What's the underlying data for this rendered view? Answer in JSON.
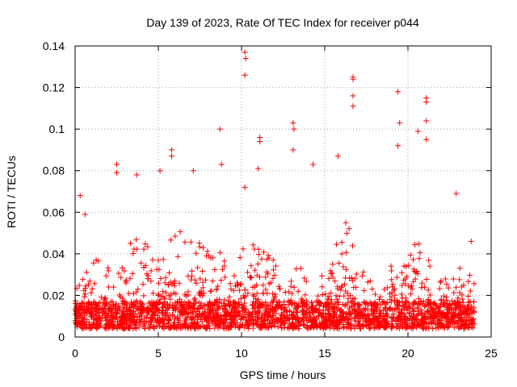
{
  "chart_data": {
    "type": "scatter",
    "title": "Day 139 of 2023, Rate Of TEC Index for receiver p044",
    "xlabel": "GPS time / hours",
    "ylabel": "ROTI / TECUs",
    "xlim": [
      0,
      25
    ],
    "ylim": [
      0,
      0.14
    ],
    "x_ticks": [
      0,
      5,
      10,
      15,
      20,
      25
    ],
    "x_tick_labels": [
      "0",
      "5",
      "10",
      "15",
      "20",
      "25"
    ],
    "y_ticks": [
      0,
      0.02,
      0.04,
      0.06,
      0.08,
      0.1,
      0.12,
      0.14
    ],
    "y_tick_labels": [
      "0",
      "0.02",
      "0.04",
      "0.06",
      "0.08",
      "0.1",
      "0.12",
      "0.14"
    ],
    "grid": true,
    "marker": "+",
    "marker_color": "#ff0000",
    "data_time_range_hours": [
      0,
      24
    ],
    "notable_points": [
      {
        "x": 0.3,
        "y": 0.068
      },
      {
        "x": 0.6,
        "y": 0.059
      },
      {
        "x": 2.5,
        "y": 0.083
      },
      {
        "x": 2.5,
        "y": 0.079
      },
      {
        "x": 3.7,
        "y": 0.078
      },
      {
        "x": 5.1,
        "y": 0.08
      },
      {
        "x": 5.8,
        "y": 0.09
      },
      {
        "x": 5.8,
        "y": 0.087
      },
      {
        "x": 7.1,
        "y": 0.08
      },
      {
        "x": 8.7,
        "y": 0.1
      },
      {
        "x": 8.8,
        "y": 0.083
      },
      {
        "x": 10.2,
        "y": 0.137
      },
      {
        "x": 10.25,
        "y": 0.134
      },
      {
        "x": 10.2,
        "y": 0.126
      },
      {
        "x": 10.2,
        "y": 0.072
      },
      {
        "x": 11.1,
        "y": 0.096
      },
      {
        "x": 11.1,
        "y": 0.094
      },
      {
        "x": 11.0,
        "y": 0.081
      },
      {
        "x": 13.1,
        "y": 0.103
      },
      {
        "x": 13.15,
        "y": 0.1
      },
      {
        "x": 13.1,
        "y": 0.09
      },
      {
        "x": 14.3,
        "y": 0.083
      },
      {
        "x": 15.8,
        "y": 0.087
      },
      {
        "x": 16.7,
        "y": 0.125
      },
      {
        "x": 16.7,
        "y": 0.124
      },
      {
        "x": 16.7,
        "y": 0.116
      },
      {
        "x": 16.7,
        "y": 0.111
      },
      {
        "x": 19.4,
        "y": 0.118
      },
      {
        "x": 19.5,
        "y": 0.103
      },
      {
        "x": 19.4,
        "y": 0.092
      },
      {
        "x": 20.6,
        "y": 0.099
      },
      {
        "x": 21.1,
        "y": 0.115
      },
      {
        "x": 21.1,
        "y": 0.113
      },
      {
        "x": 21.1,
        "y": 0.104
      },
      {
        "x": 21.1,
        "y": 0.095
      },
      {
        "x": 22.9,
        "y": 0.069
      },
      {
        "x": 23.8,
        "y": 0.046
      }
    ],
    "typical_envelope": [
      {
        "x": 0,
        "y": 0.03
      },
      {
        "x": 1,
        "y": 0.04
      },
      {
        "x": 2,
        "y": 0.035
      },
      {
        "x": 3,
        "y": 0.038
      },
      {
        "x": 3.7,
        "y": 0.055
      },
      {
        "x": 4.5,
        "y": 0.045
      },
      {
        "x": 5.5,
        "y": 0.05
      },
      {
        "x": 6.5,
        "y": 0.055
      },
      {
        "x": 7.5,
        "y": 0.045
      },
      {
        "x": 8.5,
        "y": 0.045
      },
      {
        "x": 9.5,
        "y": 0.04
      },
      {
        "x": 10.5,
        "y": 0.05
      },
      {
        "x": 11.5,
        "y": 0.045
      },
      {
        "x": 12.5,
        "y": 0.03
      },
      {
        "x": 13.5,
        "y": 0.035
      },
      {
        "x": 14.5,
        "y": 0.025
      },
      {
        "x": 15.5,
        "y": 0.04
      },
      {
        "x": 16.2,
        "y": 0.06
      },
      {
        "x": 17.0,
        "y": 0.04
      },
      {
        "x": 18.0,
        "y": 0.025
      },
      {
        "x": 19.0,
        "y": 0.035
      },
      {
        "x": 20.0,
        "y": 0.045
      },
      {
        "x": 21.0,
        "y": 0.045
      },
      {
        "x": 22.0,
        "y": 0.035
      },
      {
        "x": 23.0,
        "y": 0.035
      },
      {
        "x": 24.0,
        "y": 0.03
      }
    ],
    "baseline_range": [
      0.004,
      0.014
    ]
  }
}
